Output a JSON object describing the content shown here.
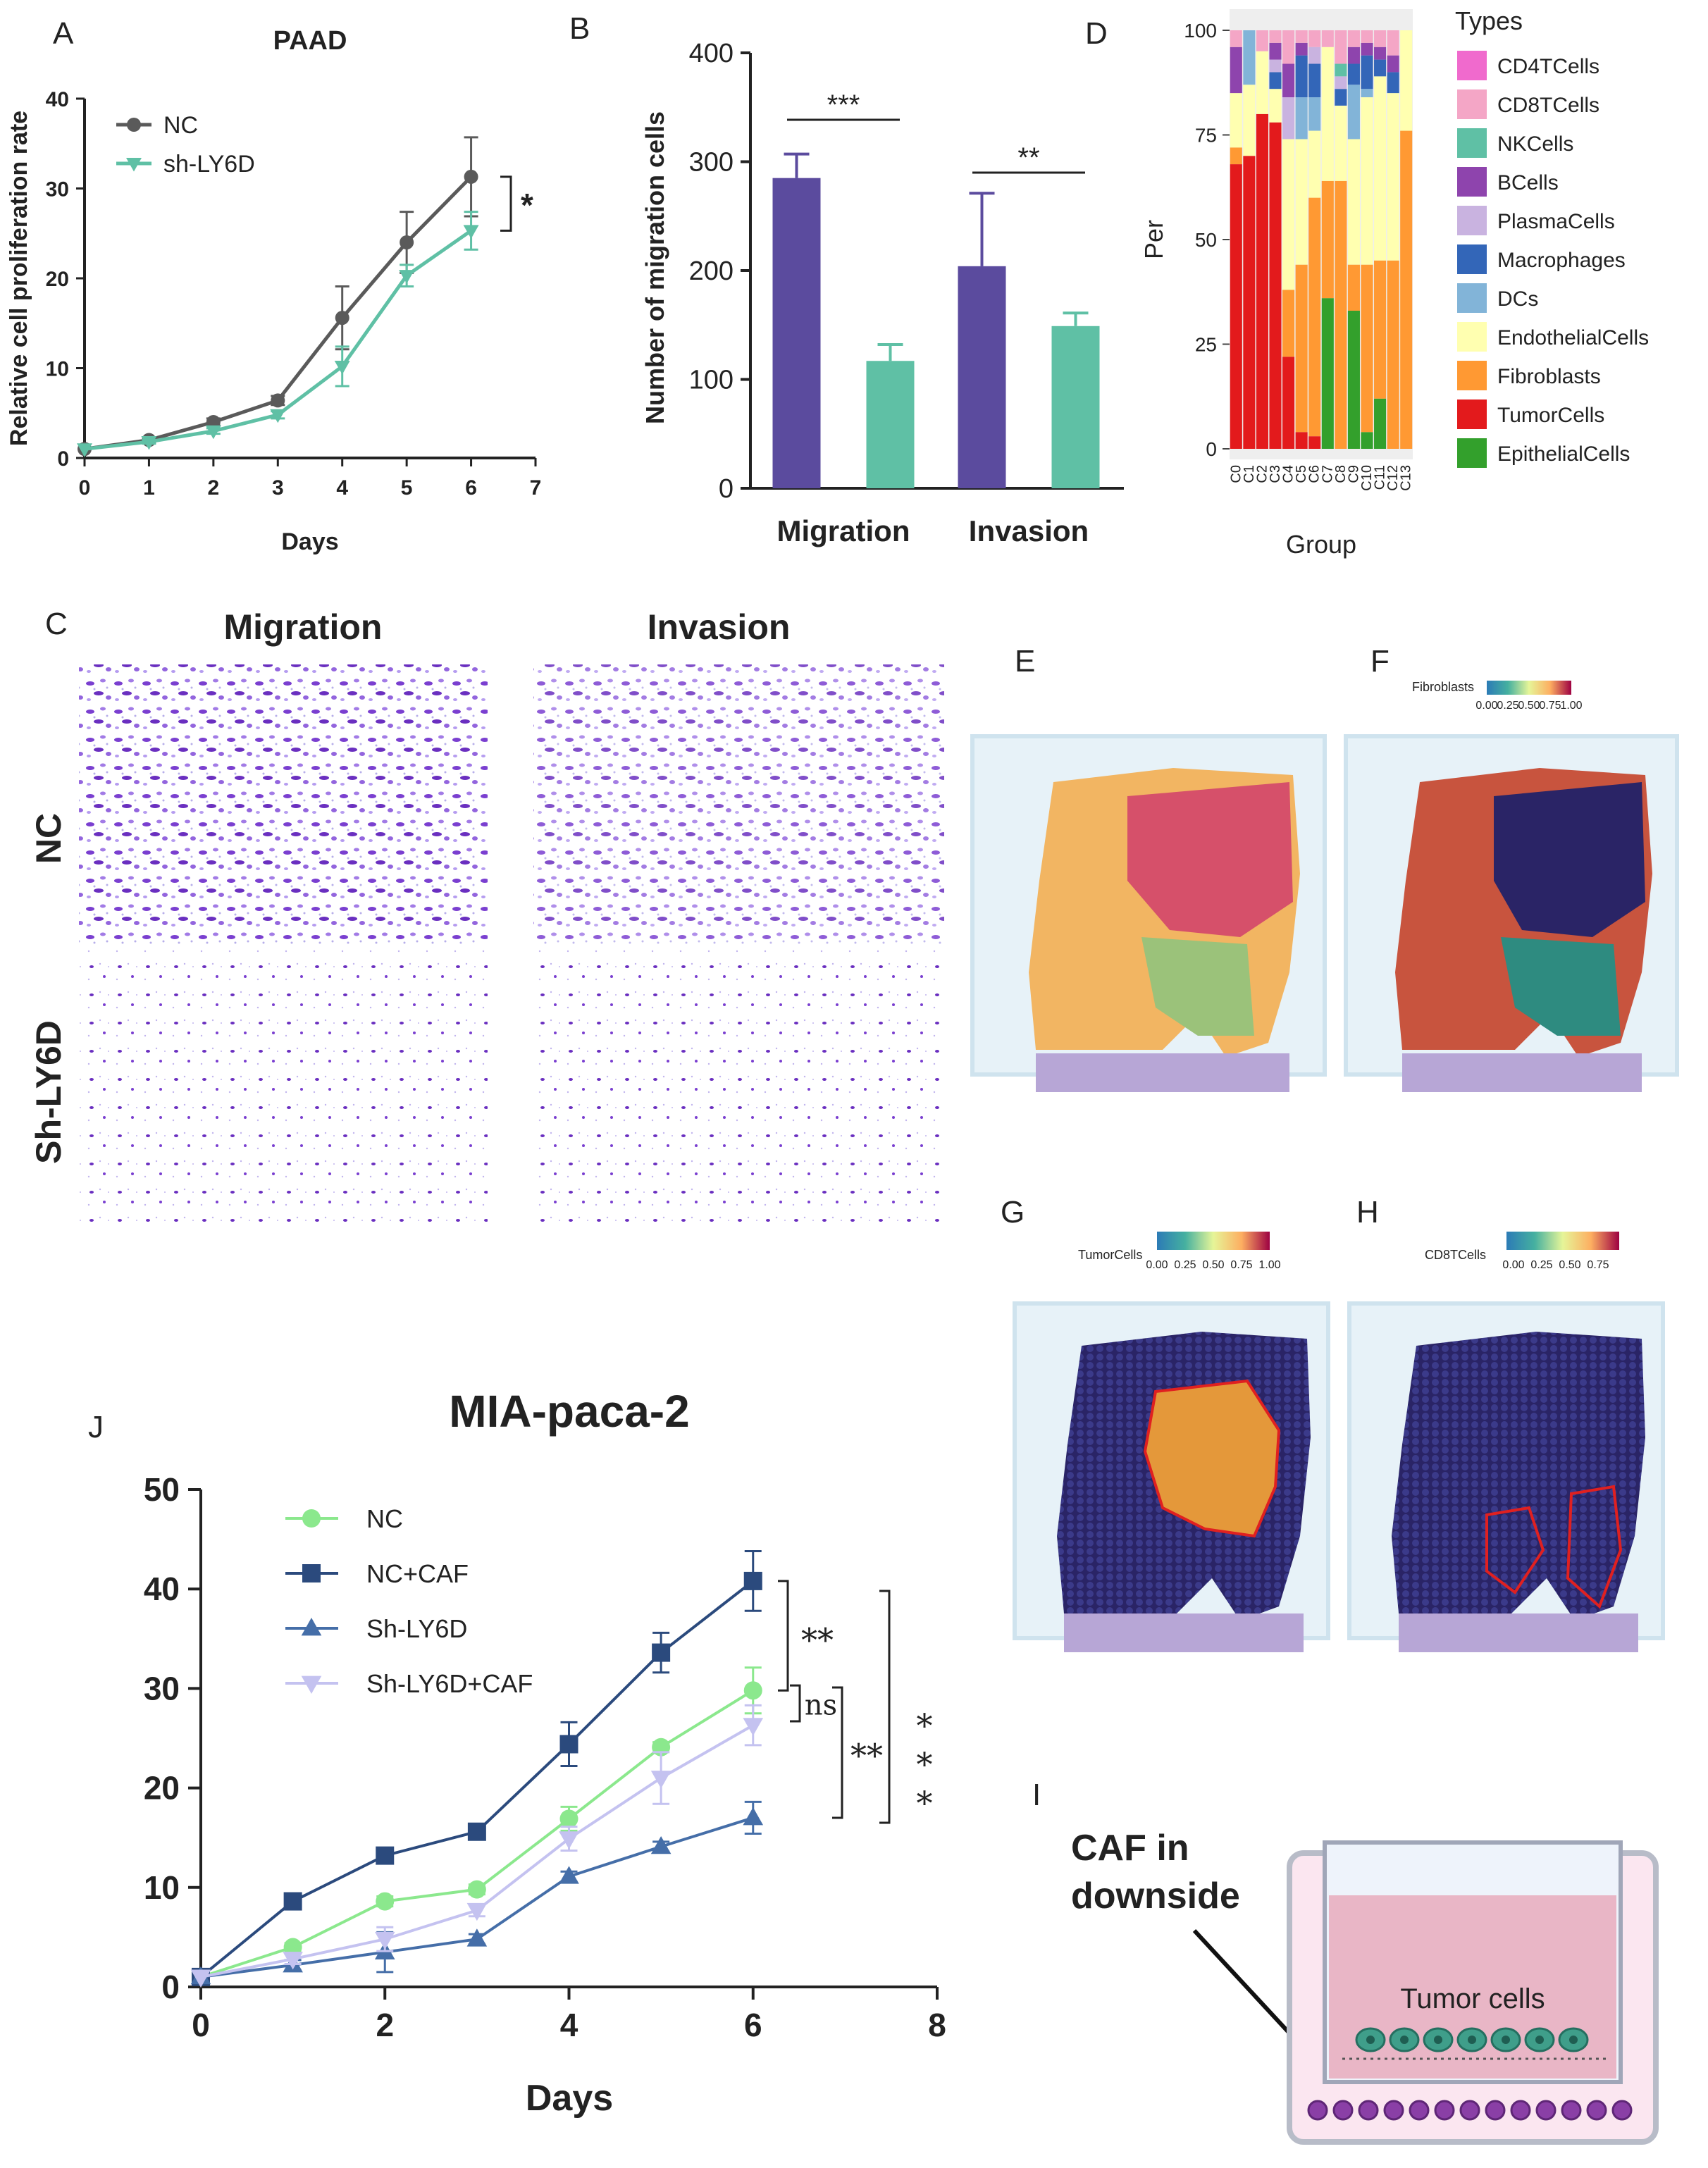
{
  "panel_letters": {
    "a": "A",
    "b": "B",
    "c": "C",
    "d": "D",
    "e": "E",
    "f": "F",
    "g": "G",
    "h": "H",
    "i": "I",
    "j": "J"
  },
  "colors": {
    "nc_gray": "#5a5a5a",
    "teal": "#5fc0a5",
    "purple": "#5b4b9e",
    "navy": "#2b4a7d",
    "nc_green": "#8be88d",
    "blue_tri": "#456ea8",
    "lavender": "#c4c2f0",
    "plot_bg": "#eeeeee"
  },
  "chart_data": [
    {
      "id": "A",
      "type": "line",
      "title": "PAAD",
      "xlabel": "Days",
      "ylabel": "Relative cell proliferation rate",
      "xlim": [
        0,
        7
      ],
      "ylim": [
        0,
        40
      ],
      "xticks": [
        0,
        1,
        2,
        3,
        4,
        5,
        6,
        7
      ],
      "yticks": [
        0,
        10,
        20,
        30,
        40
      ],
      "x": [
        0,
        1,
        2,
        3,
        4,
        5,
        6
      ],
      "series": [
        {
          "name": "NC",
          "marker": "circle",
          "values": [
            1,
            2,
            4,
            6.4,
            15.6,
            24,
            31.3
          ],
          "errors": [
            0,
            0.3,
            0.4,
            0.5,
            3.5,
            3.4,
            4.4
          ]
        },
        {
          "name": "sh-LY6D",
          "marker": "triangle-down",
          "values": [
            1,
            1.8,
            3,
            4.8,
            10.2,
            20.3,
            25.3
          ],
          "errors": [
            0,
            0.2,
            0.3,
            0.4,
            2.2,
            1.2,
            2.1
          ]
        }
      ],
      "significance": [
        "*"
      ]
    },
    {
      "id": "B",
      "type": "bar",
      "ylabel": "Number of migration cells",
      "ylim": [
        0,
        400
      ],
      "yticks": [
        0,
        100,
        200,
        300,
        400
      ],
      "categories": [
        "Migration",
        "Invasion"
      ],
      "series": [
        {
          "name": "NC",
          "values": [
            285,
            204
          ],
          "errors": [
            22,
            67
          ]
        },
        {
          "name": "sh-LY6D",
          "values": [
            117,
            149
          ],
          "errors": [
            15,
            12
          ]
        }
      ],
      "significance": [
        "***",
        "**"
      ]
    },
    {
      "id": "D",
      "type": "bar",
      "stacked": true,
      "xlabel": "Group",
      "ylabel": "Per",
      "ylim": [
        0,
        100
      ],
      "yticks": [
        0,
        25,
        50,
        75,
        100
      ],
      "categories": [
        "C0",
        "C1",
        "C2",
        "C3",
        "C4",
        "C5",
        "C6",
        "C7",
        "C8",
        "C9",
        "C10",
        "C11",
        "C12",
        "C13"
      ],
      "legend_title": "Types",
      "series": [
        {
          "name": "EpithelialCells",
          "color": "#33a02c",
          "values": [
            0,
            0,
            0,
            0,
            0,
            0,
            0,
            36,
            0,
            33,
            4,
            12,
            0,
            0
          ]
        },
        {
          "name": "TumorCells",
          "color": "#e31a1c",
          "values": [
            68,
            70,
            80,
            78,
            22,
            4,
            3,
            0,
            0,
            0,
            0,
            0,
            0,
            0
          ]
        },
        {
          "name": "Fibroblasts",
          "color": "#ff9933",
          "values": [
            4,
            0,
            0,
            0,
            16,
            40,
            57,
            28,
            64,
            11,
            40,
            33,
            45,
            76
          ]
        },
        {
          "name": "EndothelialCells",
          "color": "#ffffb0",
          "values": [
            13,
            17,
            15,
            8,
            36,
            30,
            16,
            32,
            18,
            30,
            40,
            44,
            40,
            24
          ]
        },
        {
          "name": "DCs",
          "color": "#82b4d8",
          "values": [
            0,
            13,
            0,
            0,
            0,
            10,
            8,
            0,
            0,
            13,
            2,
            0,
            0,
            0
          ]
        },
        {
          "name": "Macrophages",
          "color": "#3366b8",
          "values": [
            0,
            0,
            0,
            4,
            0,
            10,
            8,
            0,
            4,
            5,
            8,
            4,
            5,
            0
          ]
        },
        {
          "name": "PlasmaCells",
          "color": "#c9b3e0",
          "values": [
            0,
            0,
            0,
            3,
            10,
            0,
            4,
            0,
            3,
            0,
            0,
            0,
            0,
            0
          ]
        },
        {
          "name": "BCells",
          "color": "#8e44ad",
          "values": [
            11,
            0,
            0,
            4,
            8,
            3,
            0,
            0,
            0,
            4,
            3,
            3,
            4,
            0
          ]
        },
        {
          "name": "NKCells",
          "color": "#5fc0a5",
          "values": [
            0,
            0,
            0,
            0,
            0,
            0,
            0,
            0,
            3,
            0,
            0,
            0,
            0,
            0
          ]
        },
        {
          "name": "CD8TCells",
          "color": "#f4a6c6",
          "values": [
            4,
            0,
            5,
            3,
            8,
            3,
            4,
            4,
            8,
            4,
            3,
            4,
            6,
            0
          ]
        },
        {
          "name": "CD4TCells",
          "color": "#f06acd",
          "values": [
            0,
            0,
            0,
            0,
            0,
            0,
            0,
            0,
            0,
            0,
            0,
            0,
            0,
            0
          ]
        }
      ],
      "legend_order": [
        "CD4TCells",
        "CD8TCells",
        "NKCells",
        "BCells",
        "PlasmaCells",
        "Macrophages",
        "DCs",
        "EndothelialCells",
        "Fibroblasts",
        "TumorCells",
        "EpithelialCells"
      ]
    },
    {
      "id": "J",
      "type": "line",
      "title": "MIA-paca-2",
      "xlabel": "Days",
      "xlim": [
        0,
        8
      ],
      "ylim": [
        0,
        50
      ],
      "xticks": [
        0,
        2,
        4,
        6,
        8
      ],
      "yticks": [
        0,
        10,
        20,
        30,
        40,
        50
      ],
      "x": [
        0,
        1,
        2,
        3,
        4,
        5,
        6
      ],
      "series": [
        {
          "name": "NC",
          "marker": "circle",
          "values": [
            1,
            4,
            8.6,
            9.8,
            16.9,
            24.1,
            29.8
          ],
          "errors": [
            0,
            0.4,
            0.5,
            0.5,
            1.2,
            0.5,
            2.3
          ]
        },
        {
          "name": "NC+CAF",
          "marker": "square",
          "values": [
            1,
            8.6,
            13.2,
            15.6,
            24.4,
            33.6,
            40.8
          ],
          "errors": [
            0,
            0.5,
            0.6,
            0.5,
            2.2,
            2,
            3
          ]
        },
        {
          "name": "Sh-LY6D",
          "marker": "triangle-up",
          "values": [
            1,
            2.2,
            3.5,
            4.8,
            11.1,
            14.1,
            17.0
          ],
          "errors": [
            0,
            0.5,
            2,
            0.5,
            0.5,
            0.5,
            1.6
          ]
        },
        {
          "name": "Sh-LY6D+CAF",
          "marker": "triangle-down",
          "values": [
            1,
            2.8,
            4.8,
            7.7,
            14.9,
            21.0,
            26.3
          ],
          "errors": [
            0,
            0.5,
            1.2,
            0.6,
            1.2,
            2.6,
            2
          ]
        }
      ],
      "significance": [
        "**",
        "ns",
        "**",
        "*",
        "*",
        "*"
      ]
    }
  ],
  "panel_c": {
    "col_migration": "Migration",
    "col_invasion": "Invasion",
    "row_nc": "NC",
    "row_sh": "Sh-LY6D"
  },
  "spatial": {
    "f_label": "Fibroblasts",
    "g_label": "TumorCells",
    "h_label": "CD8TCells",
    "scale_ticks_full": [
      "0.00",
      "0.25",
      "0.50",
      "0.75",
      "1.00"
    ],
    "scale_ticks_h": [
      "0.00",
      "0.25",
      "0.50",
      "0.75"
    ]
  },
  "panel_i": {
    "label_line1": "CAF in",
    "label_line2": "downside",
    "tumor_label": "Tumor cells"
  }
}
